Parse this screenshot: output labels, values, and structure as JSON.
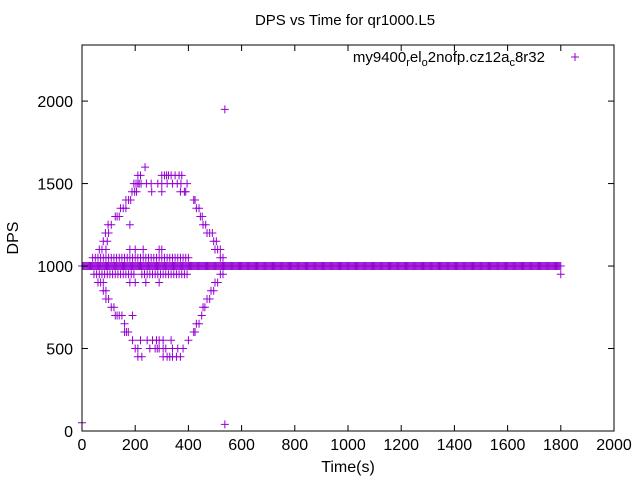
{
  "chart_data": {
    "type": "scatter",
    "title": "DPS vs Time for qr1000.L5",
    "xlabel": "Time(s)",
    "ylabel": "DPS",
    "xlim": [
      0,
      2000
    ],
    "ylim": [
      0,
      2340
    ],
    "xticks": [
      0,
      200,
      400,
      600,
      800,
      1000,
      1200,
      1400,
      1600,
      1800,
      2000
    ],
    "yticks": [
      0,
      500,
      1000,
      1500,
      2000
    ],
    "grid": false,
    "legend_position": "top-right",
    "series": [
      {
        "name": "my9400_rel_o2nofp.cz12a_c8r32",
        "color": "#9400d3",
        "marker": "plus",
        "baseline": {
          "y": 1000,
          "x_from": 0,
          "x_to": 1800,
          "x_step": 4
        },
        "rows": [
          {
            "y": 1050,
            "x": [
              40,
              50,
              60,
              70,
              80,
              90,
              100,
              110,
              120,
              130,
              140,
              150,
              160,
              170,
              180,
              190,
              200,
              210,
              220,
              230,
              240,
              250,
              260,
              270,
              280,
              290,
              300,
              310,
              320,
              330,
              340,
              350,
              360,
              370,
              380,
              390,
              400,
              520,
              530
            ]
          },
          {
            "y": 950,
            "x": [
              45,
              55,
              65,
              75,
              85,
              95,
              105,
              115,
              125,
              135,
              145,
              155,
              165,
              175,
              185,
              195,
              225,
              235,
              245,
              255,
              265,
              275,
              285,
              295,
              305,
              315,
              325,
              335,
              345,
              355,
              365,
              375,
              385,
              395,
              520,
              530
            ]
          },
          {
            "y": 1100,
            "x": [
              65,
              75,
              90,
              180,
              200,
              230,
              290,
              300,
              500,
              510,
              520
            ]
          },
          {
            "y": 1150,
            "x": [
              80,
              95,
              495,
              505
            ]
          },
          {
            "y": 1200,
            "x": [
              88,
              100,
              470,
              480,
              490
            ]
          },
          {
            "y": 1250,
            "x": [
              98,
              110,
              180,
              455,
              465
            ]
          },
          {
            "y": 1300,
            "x": [
              125,
              132,
              140,
              445,
              452
            ]
          },
          {
            "y": 1350,
            "x": [
              145,
              155,
              165,
              430,
              440
            ]
          },
          {
            "y": 1400,
            "x": [
              165,
              175,
              183,
              420,
              425
            ]
          },
          {
            "y": 1450,
            "x": [
              188,
              198,
              205,
              262,
              300,
              370,
              385,
              390
            ]
          },
          {
            "y": 1500,
            "x": [
              195,
              203,
              210,
              215,
              222,
              242,
              260,
              285,
              300,
              320,
              340,
              358,
              372,
              395
            ]
          },
          {
            "y": 1550,
            "x": [
              210,
              220,
              300,
              310,
              318,
              325,
              335,
              350,
              365,
              375
            ]
          },
          {
            "y": 1600,
            "x": [
              237
            ]
          },
          {
            "y": 900,
            "x": [
              60,
              70,
              80,
              180,
              200,
              240,
              290,
              500,
              510
            ]
          },
          {
            "y": 850,
            "x": [
              80,
              90,
              485,
              495
            ]
          },
          {
            "y": 800,
            "x": [
              90,
              100,
              470,
              480
            ]
          },
          {
            "y": 750,
            "x": [
              110,
              120,
              455,
              462
            ]
          },
          {
            "y": 700,
            "x": [
              125,
              132,
              140,
              150,
              190,
              450
            ]
          },
          {
            "y": 650,
            "x": [
              160,
              430,
              440
            ]
          },
          {
            "y": 600,
            "x": [
              160,
              167,
              174,
              420,
              425
            ]
          },
          {
            "y": 550,
            "x": [
              190,
              220,
              245,
              265,
              280,
              290,
              305,
              335,
              400
            ]
          },
          {
            "y": 500,
            "x": [
              200,
              210,
              255,
              275,
              283,
              290,
              305,
              315,
              340,
              360,
              380
            ]
          },
          {
            "y": 450,
            "x": [
              210,
              225,
              305,
              320,
              330,
              340,
              355,
              370
            ]
          }
        ],
        "outliers": [
          [
            537,
            1950
          ],
          [
            537,
            40
          ],
          [
            0,
            50
          ],
          [
            1800,
            950
          ]
        ]
      }
    ]
  }
}
